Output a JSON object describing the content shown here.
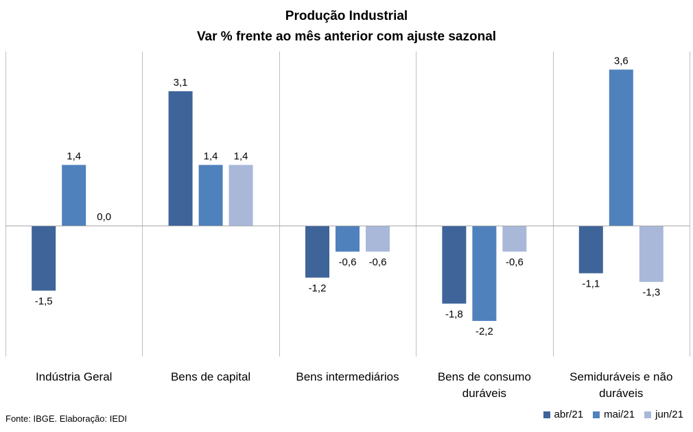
{
  "chart_data": {
    "type": "bar",
    "title": "Produção Industrial",
    "subtitle": "Var % frente ao mês anterior com ajuste sazonal",
    "categories": [
      [
        "Indústria Geral"
      ],
      [
        "Bens de capital"
      ],
      [
        "Bens intermediários"
      ],
      [
        "Bens de consumo",
        "duráveis"
      ],
      [
        "Semiduráveis e não",
        "duráveis"
      ]
    ],
    "series": [
      {
        "name": "abr/21",
        "color": "#3e6499",
        "values": [
          -1.5,
          3.1,
          -1.2,
          -1.8,
          -1.1
        ]
      },
      {
        "name": "mai/21",
        "color": "#4f81bd",
        "values": [
          1.4,
          1.4,
          -0.6,
          -2.2,
          3.6
        ]
      },
      {
        "name": "jun/21",
        "color": "#a9b8d9",
        "values": [
          0.0,
          1.4,
          -0.6,
          -0.6,
          -1.3
        ]
      }
    ],
    "data_labels": [
      [
        "-1,5",
        "3,1",
        "-1,2",
        "-1,8",
        "-1,1"
      ],
      [
        "1,4",
        "1,4",
        "-0,6",
        "-2,2",
        "3,6"
      ],
      [
        "0,0",
        "1,4",
        "-0,6",
        "-0,6",
        "-1,3"
      ]
    ],
    "ylim": [
      -3.0,
      3.9
    ],
    "grid": false,
    "legend_position": "bottom-right",
    "source": "Fonte: IBGE. Elaboração: IEDI"
  }
}
